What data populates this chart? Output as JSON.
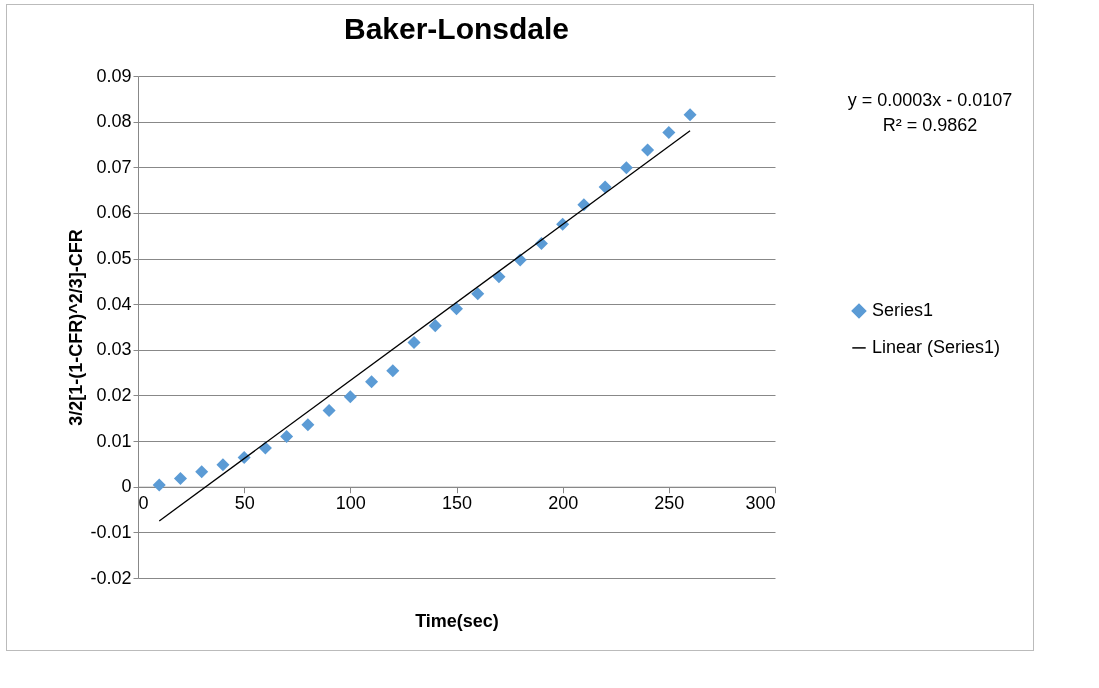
{
  "chart_data": {
    "type": "scatter",
    "title": "Baker-Lonsdale",
    "xlabel": "Time(sec)",
    "ylabel": "3/2[1-(1-CFR)^2/3]-CFR",
    "xlim": [
      0,
      300
    ],
    "xticks": [
      0,
      50,
      100,
      150,
      200,
      250,
      300
    ],
    "ylim": [
      -0.02,
      0.09
    ],
    "yticks": [
      -0.02,
      -0.01,
      0,
      0.01,
      0.02,
      0.03,
      0.04,
      0.05,
      0.06,
      0.07,
      0.08,
      0.09
    ],
    "grid": "y",
    "legend": "right",
    "annotations": [
      "y = 0.0003x - 0.0107",
      "R² = 0.9862"
    ],
    "x": [
      10,
      20,
      30,
      40,
      50,
      60,
      70,
      80,
      90,
      100,
      110,
      120,
      130,
      140,
      150,
      160,
      170,
      180,
      190,
      200,
      210,
      220,
      230,
      240,
      250,
      260
    ],
    "series": [
      {
        "name": "Series1",
        "marker": "diamond",
        "color": "#5b9bd5",
        "values": [
          0.0004,
          0.0018,
          0.0033,
          0.0048,
          0.0064,
          0.0085,
          0.011,
          0.0136,
          0.0167,
          0.0197,
          0.023,
          0.0254,
          0.0316,
          0.0353,
          0.039,
          0.0423,
          0.046,
          0.0497,
          0.0533,
          0.0575,
          0.0618,
          0.0657,
          0.0699,
          0.0738,
          0.0776,
          0.0815
        ]
      },
      {
        "name": "Linear (Series1)",
        "type": "line",
        "marker": "none",
        "color": "#000000",
        "line_style": "solid",
        "x": [
          10,
          260
        ],
        "values": [
          -0.0075,
          0.078
        ]
      }
    ]
  }
}
